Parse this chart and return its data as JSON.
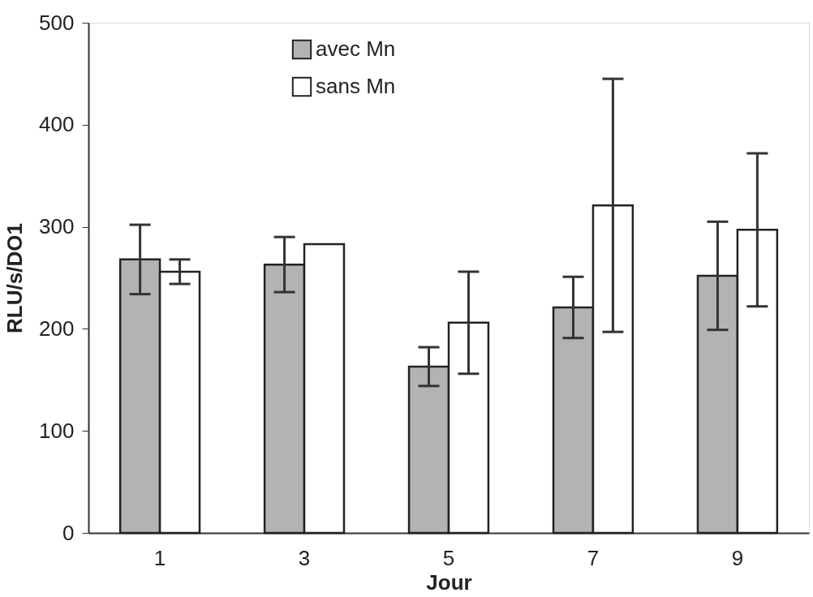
{
  "chart_data": {
    "type": "bar",
    "xlabel": "Jour",
    "ylabel": "RLU/s/DO1",
    "categories": [
      "1",
      "3",
      "5",
      "7",
      "9"
    ],
    "series": [
      {
        "name": "avec Mn",
        "color": "#b3b3b3",
        "values": [
          268,
          263,
          163,
          221,
          252
        ],
        "errors": [
          34,
          27,
          19,
          30,
          53
        ]
      },
      {
        "name": "sans Mn",
        "color": "#ffffff",
        "values": [
          256,
          283,
          206,
          321,
          297
        ],
        "errors": [
          12,
          null,
          50,
          124,
          75
        ]
      }
    ],
    "ylim": [
      0,
      500
    ],
    "yticks": [
      0,
      100,
      200,
      300,
      400,
      500
    ],
    "grid": false,
    "legend": "top"
  }
}
